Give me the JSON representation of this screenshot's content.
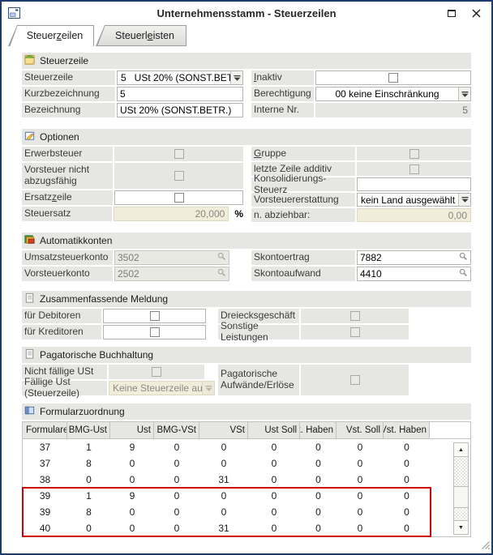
{
  "window": {
    "title": "Unternehmensstamm - Steuerzeilen"
  },
  "icons": {
    "scroll_up": "▲",
    "scroll_down": "▼"
  },
  "tabs": {
    "t1": {
      "pre": "Steuer",
      "hot": "z",
      "post": "eilen"
    },
    "t2": {
      "pre": "Steuerl",
      "hot": "e",
      "post": "isten"
    }
  },
  "s1": {
    "title": "Steuerzeile",
    "steuerzeile_label": "Steuerzeile",
    "steuerzeile_value": "5   USt 20% (SONST.BETR.",
    "kurzbezeichnung_label": "Kurzbezeichnung",
    "kurzbezeichnung_value": "5",
    "bezeichnung_label": "Bezeichnung",
    "bezeichnung_value": "USt 20% (SONST.BETR.)",
    "inaktiv_hot": "I",
    "inaktiv_post": "naktiv",
    "berechtigung_label": "Berechtigung",
    "berechtigung_value": "00 keine Einschränkung",
    "interne_label": "Interne Nr.",
    "interne_value": "5"
  },
  "s2": {
    "title": "Optionen",
    "erwerbsteuer_label": "Erwerbsteuer",
    "vorsteuer_label": "Vorsteuer nicht abzugsfähig",
    "ersatz_pre": "Ersatz",
    "ersatz_hot": "z",
    "ersatz_post": "eile",
    "steuersatz_label": "Steuersatz",
    "steuersatz_value": "20,000",
    "steuersatz_unit": "%",
    "gruppe_hot": "G",
    "gruppe_post": "ruppe",
    "letzte_label": "letzte Zeile additiv",
    "konsolidierung_label": "Konsolidierungs-Steuerz",
    "konsolidierung_value": "",
    "vorsteuererstattung_label": "Vorsteuererstattung",
    "vorsteuererstattung_value": "kein Land ausgewählt",
    "abziehbar_label": "n. abziehbar:",
    "abziehbar_value": "0,00"
  },
  "s3": {
    "title": "Automatikkonten",
    "umsatz_label": "Umsatzsteuerkonto",
    "umsatz_value": "3502",
    "vorsteuer_label": "Vorsteuerkonto",
    "vorsteuer_value": "2502",
    "ertrag_label": "Skontoertrag",
    "ertrag_value": "7882",
    "aufwand_label": "Skontoaufwand",
    "aufwand_value": "4410"
  },
  "s4": {
    "title": "Zusammenfassende Meldung",
    "debitoren_label": "für Debitoren",
    "kreditoren_label": "für Kreditoren",
    "dreieck_label": "Dreiecksgeschäft",
    "sonstige_label": "Sonstige Leistungen"
  },
  "s5": {
    "title": "Pagatorische Buchhaltung",
    "nichtfaellig_label": "Nicht fällige USt",
    "faellig_label": "Fällige Ust (Steuerzeile)",
    "faellig_value": "Keine Steuerzeile ausgev",
    "pagatorisch_label": "Pagatorische Aufwände/Erlöse"
  },
  "ft": {
    "title": "Formularzuordnung",
    "columns": [
      "Formulare",
      "BMG-Ust",
      "Ust",
      "BMG-VSt",
      "VSt",
      "Ust Soll",
      "Ust. Haben",
      "Vst. Soll",
      "Vst. Haben"
    ],
    "rows": [
      [
        "37",
        "1",
        "9",
        "0",
        "0",
        "0",
        "0",
        "0",
        "0"
      ],
      [
        "37",
        "8",
        "0",
        "0",
        "0",
        "0",
        "0",
        "0",
        "0"
      ],
      [
        "38",
        "0",
        "0",
        "0",
        "31",
        "0",
        "0",
        "0",
        "0"
      ],
      [
        "39",
        "1",
        "9",
        "0",
        "0",
        "0",
        "0",
        "0",
        "0"
      ],
      [
        "39",
        "8",
        "0",
        "0",
        "0",
        "0",
        "0",
        "0",
        "0"
      ],
      [
        "40",
        "0",
        "0",
        "0",
        "31",
        "0",
        "0",
        "0",
        "0"
      ]
    ],
    "highlight": {
      "first_row": 3,
      "row_count": 3,
      "color": "#cc0000"
    }
  },
  "colors": {
    "window_border": "#1d3c6e",
    "panel_gray": "#e6e6e2",
    "readonly_cream": "#f1edda",
    "highlight_red": "#cc0000"
  }
}
